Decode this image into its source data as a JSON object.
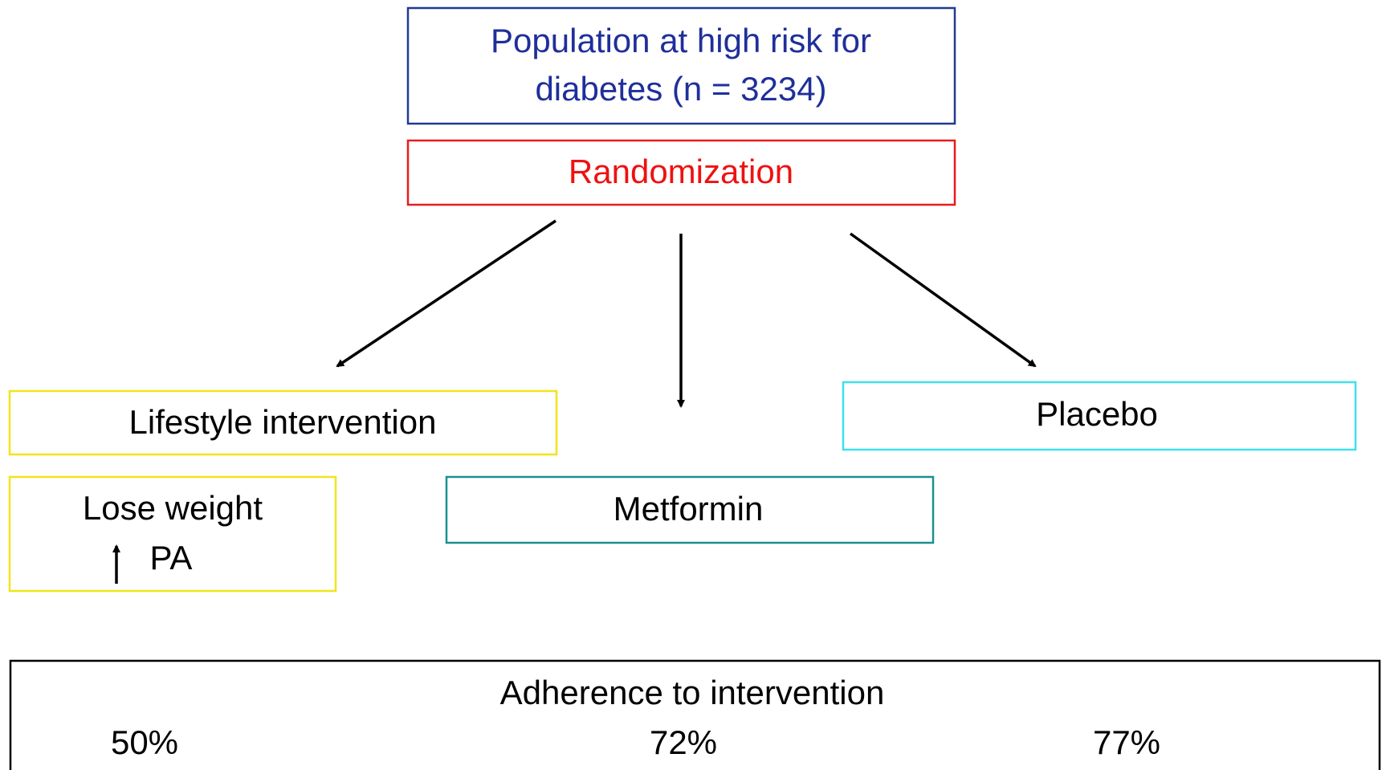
{
  "nodes": [
    {
      "lines": [
        "Population at high risk for",
        "diabetes (n = 3234)"
      ]
    },
    {
      "label": "Randomization"
    },
    {
      "label": "Lifestyle intervention"
    },
    {
      "label": "Metformin"
    },
    {
      "label": "Placebo"
    },
    {
      "lines": [
        "Lose weight",
        "PA"
      ]
    }
  ],
  "adherence": {
    "title": "Adherence to intervention",
    "values": [
      "50%",
      "72%",
      "77%"
    ]
  }
}
